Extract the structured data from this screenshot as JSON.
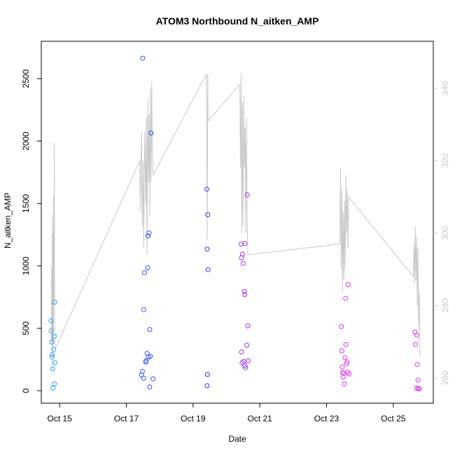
{
  "chart_data": {
    "type": "scatter",
    "title": "ATOM3 Northbound N_aitken_AMP",
    "xlabel": "Date",
    "ylabel": "N_aitken_AMP",
    "x_ticks": [
      "Oct 15",
      "Oct 17",
      "Oct 19",
      "Oct 21",
      "Oct 23",
      "Oct 25"
    ],
    "x_tick_days": [
      15,
      17,
      19,
      21,
      23,
      25
    ],
    "xlim_days": [
      14.45,
      26.2
    ],
    "ylim": [
      -100,
      2800
    ],
    "y_ticks": [
      0,
      500,
      1000,
      1500,
      2000,
      2500
    ],
    "y2lim": [
      253,
      353
    ],
    "y2_ticks": [
      260,
      280,
      300,
      320,
      340
    ],
    "grid": false,
    "colors": {
      "line": "#c8c8c8",
      "right_axis": "#c8c8c8",
      "point_cyan": "#2aa0f0",
      "point_blue": "#2a50f0",
      "point_indigo": "#3b2ee8",
      "point_violet": "#9a30ea",
      "point_magenta": "#d830ea"
    },
    "series": [
      {
        "kind": "points",
        "axis": "left",
        "color_key": "point_cyan",
        "points": [
          {
            "x": 14.74,
            "y": 560
          },
          {
            "x": 14.75,
            "y": 480
          },
          {
            "x": 14.76,
            "y": 390
          },
          {
            "x": 14.77,
            "y": 270
          },
          {
            "x": 14.78,
            "y": 290
          },
          {
            "x": 14.79,
            "y": 175
          },
          {
            "x": 14.8,
            "y": 20
          },
          {
            "x": 14.82,
            "y": 330
          },
          {
            "x": 14.84,
            "y": 435
          },
          {
            "x": 14.85,
            "y": 710
          },
          {
            "x": 14.86,
            "y": 225
          },
          {
            "x": 14.84,
            "y": 55
          }
        ]
      },
      {
        "kind": "points",
        "axis": "left",
        "color_key": "point_blue",
        "points": [
          {
            "x": 17.49,
            "y": 2665
          },
          {
            "x": 17.45,
            "y": 125
          },
          {
            "x": 17.48,
            "y": 155
          },
          {
            "x": 17.52,
            "y": 100
          },
          {
            "x": 17.52,
            "y": 650
          },
          {
            "x": 17.54,
            "y": 945
          },
          {
            "x": 17.58,
            "y": 230
          },
          {
            "x": 17.59,
            "y": 240
          },
          {
            "x": 17.62,
            "y": 300
          },
          {
            "x": 17.64,
            "y": 985
          },
          {
            "x": 17.65,
            "y": 1240
          },
          {
            "x": 17.66,
            "y": 270
          },
          {
            "x": 17.68,
            "y": 1265
          },
          {
            "x": 17.7,
            "y": 490
          },
          {
            "x": 17.7,
            "y": 30
          },
          {
            "x": 17.72,
            "y": 275
          },
          {
            "x": 17.74,
            "y": 2065
          },
          {
            "x": 17.8,
            "y": 95
          }
        ]
      },
      {
        "kind": "points",
        "axis": "left",
        "color_key": "point_indigo",
        "points": [
          {
            "x": 19.41,
            "y": 1615
          },
          {
            "x": 19.44,
            "y": 1410
          },
          {
            "x": 19.42,
            "y": 1135
          },
          {
            "x": 19.45,
            "y": 970
          },
          {
            "x": 19.43,
            "y": 130
          },
          {
            "x": 19.42,
            "y": 40
          }
        ]
      },
      {
        "kind": "points",
        "axis": "left",
        "color_key": "point_violet",
        "points": [
          {
            "x": 20.44,
            "y": 1175
          },
          {
            "x": 20.45,
            "y": 1065
          },
          {
            "x": 20.48,
            "y": 1095
          },
          {
            "x": 20.5,
            "y": 1020
          },
          {
            "x": 20.55,
            "y": 1180
          },
          {
            "x": 20.54,
            "y": 795
          },
          {
            "x": 20.55,
            "y": 770
          },
          {
            "x": 20.62,
            "y": 1570
          },
          {
            "x": 20.64,
            "y": 520
          },
          {
            "x": 20.61,
            "y": 365
          },
          {
            "x": 20.45,
            "y": 310
          },
          {
            "x": 20.47,
            "y": 225
          },
          {
            "x": 20.52,
            "y": 235
          },
          {
            "x": 20.55,
            "y": 200
          },
          {
            "x": 20.57,
            "y": 185
          },
          {
            "x": 20.65,
            "y": 240
          }
        ]
      },
      {
        "kind": "points",
        "axis": "left",
        "color_key": "point_magenta",
        "points": [
          {
            "x": 23.44,
            "y": 515
          },
          {
            "x": 23.46,
            "y": 320
          },
          {
            "x": 23.47,
            "y": 190
          },
          {
            "x": 23.48,
            "y": 145
          },
          {
            "x": 23.5,
            "y": 110
          },
          {
            "x": 23.52,
            "y": 140
          },
          {
            "x": 23.53,
            "y": 55
          },
          {
            "x": 23.55,
            "y": 265
          },
          {
            "x": 23.57,
            "y": 740
          },
          {
            "x": 23.58,
            "y": 370
          },
          {
            "x": 23.6,
            "y": 215
          },
          {
            "x": 23.62,
            "y": 230
          },
          {
            "x": 23.63,
            "y": 150
          },
          {
            "x": 23.65,
            "y": 850
          },
          {
            "x": 23.67,
            "y": 135
          },
          {
            "x": 25.65,
            "y": 470
          },
          {
            "x": 25.67,
            "y": 370
          },
          {
            "x": 25.7,
            "y": 445
          },
          {
            "x": 25.72,
            "y": 210
          },
          {
            "x": 25.74,
            "y": 85
          },
          {
            "x": 25.7,
            "y": 20
          },
          {
            "x": 25.75,
            "y": 20
          },
          {
            "x": 25.78,
            "y": 15
          }
        ]
      },
      {
        "kind": "line",
        "axis": "right",
        "color_key": "line",
        "points": [
          {
            "x": 14.75,
            "y": 270
          },
          {
            "x": 14.76,
            "y": 290
          },
          {
            "x": 14.77,
            "y": 268
          },
          {
            "x": 14.78,
            "y": 305
          },
          {
            "x": 14.79,
            "y": 262
          },
          {
            "x": 14.8,
            "y": 300
          },
          {
            "x": 14.81,
            "y": 270
          },
          {
            "x": 14.82,
            "y": 310
          },
          {
            "x": 14.83,
            "y": 282
          },
          {
            "x": 14.84,
            "y": 325
          },
          {
            "x": 14.85,
            "y": 270
          },
          {
            "x": 14.87,
            "y": 268
          },
          {
            "x": 17.4,
            "y": 320
          },
          {
            "x": 17.42,
            "y": 306
          },
          {
            "x": 17.45,
            "y": 328
          },
          {
            "x": 17.48,
            "y": 302
          },
          {
            "x": 17.5,
            "y": 320
          },
          {
            "x": 17.52,
            "y": 296
          },
          {
            "x": 17.55,
            "y": 328
          },
          {
            "x": 17.58,
            "y": 308
          },
          {
            "x": 17.6,
            "y": 332
          },
          {
            "x": 17.62,
            "y": 294
          },
          {
            "x": 17.64,
            "y": 337
          },
          {
            "x": 17.66,
            "y": 314
          },
          {
            "x": 17.68,
            "y": 333
          },
          {
            "x": 17.7,
            "y": 305
          },
          {
            "x": 17.72,
            "y": 340
          },
          {
            "x": 17.74,
            "y": 314
          },
          {
            "x": 17.76,
            "y": 342
          },
          {
            "x": 17.78,
            "y": 322
          },
          {
            "x": 17.8,
            "y": 316
          },
          {
            "x": 19.4,
            "y": 344
          },
          {
            "x": 19.42,
            "y": 298
          },
          {
            "x": 19.44,
            "y": 344
          },
          {
            "x": 19.45,
            "y": 331
          },
          {
            "x": 20.4,
            "y": 341
          },
          {
            "x": 20.42,
            "y": 318
          },
          {
            "x": 20.44,
            "y": 344
          },
          {
            "x": 20.46,
            "y": 300
          },
          {
            "x": 20.48,
            "y": 336
          },
          {
            "x": 20.5,
            "y": 302
          },
          {
            "x": 20.52,
            "y": 338
          },
          {
            "x": 20.54,
            "y": 318
          },
          {
            "x": 20.56,
            "y": 329
          },
          {
            "x": 20.58,
            "y": 300
          },
          {
            "x": 20.6,
            "y": 332
          },
          {
            "x": 20.62,
            "y": 305
          },
          {
            "x": 20.64,
            "y": 294
          },
          {
            "x": 23.4,
            "y": 297
          },
          {
            "x": 23.42,
            "y": 318
          },
          {
            "x": 23.44,
            "y": 290
          },
          {
            "x": 23.46,
            "y": 312
          },
          {
            "x": 23.48,
            "y": 284
          },
          {
            "x": 23.5,
            "y": 306
          },
          {
            "x": 23.52,
            "y": 287
          },
          {
            "x": 23.54,
            "y": 309
          },
          {
            "x": 23.56,
            "y": 290
          },
          {
            "x": 23.58,
            "y": 316
          },
          {
            "x": 23.6,
            "y": 300
          },
          {
            "x": 23.62,
            "y": 312
          },
          {
            "x": 23.64,
            "y": 296
          },
          {
            "x": 23.66,
            "y": 310
          },
          {
            "x": 25.6,
            "y": 288
          },
          {
            "x": 25.62,
            "y": 297
          },
          {
            "x": 25.64,
            "y": 286
          },
          {
            "x": 25.66,
            "y": 302
          },
          {
            "x": 25.68,
            "y": 287
          },
          {
            "x": 25.7,
            "y": 299
          },
          {
            "x": 25.72,
            "y": 280
          },
          {
            "x": 25.74,
            "y": 296
          },
          {
            "x": 25.76,
            "y": 274
          },
          {
            "x": 25.78,
            "y": 284
          },
          {
            "x": 25.8,
            "y": 266
          }
        ]
      }
    ]
  }
}
